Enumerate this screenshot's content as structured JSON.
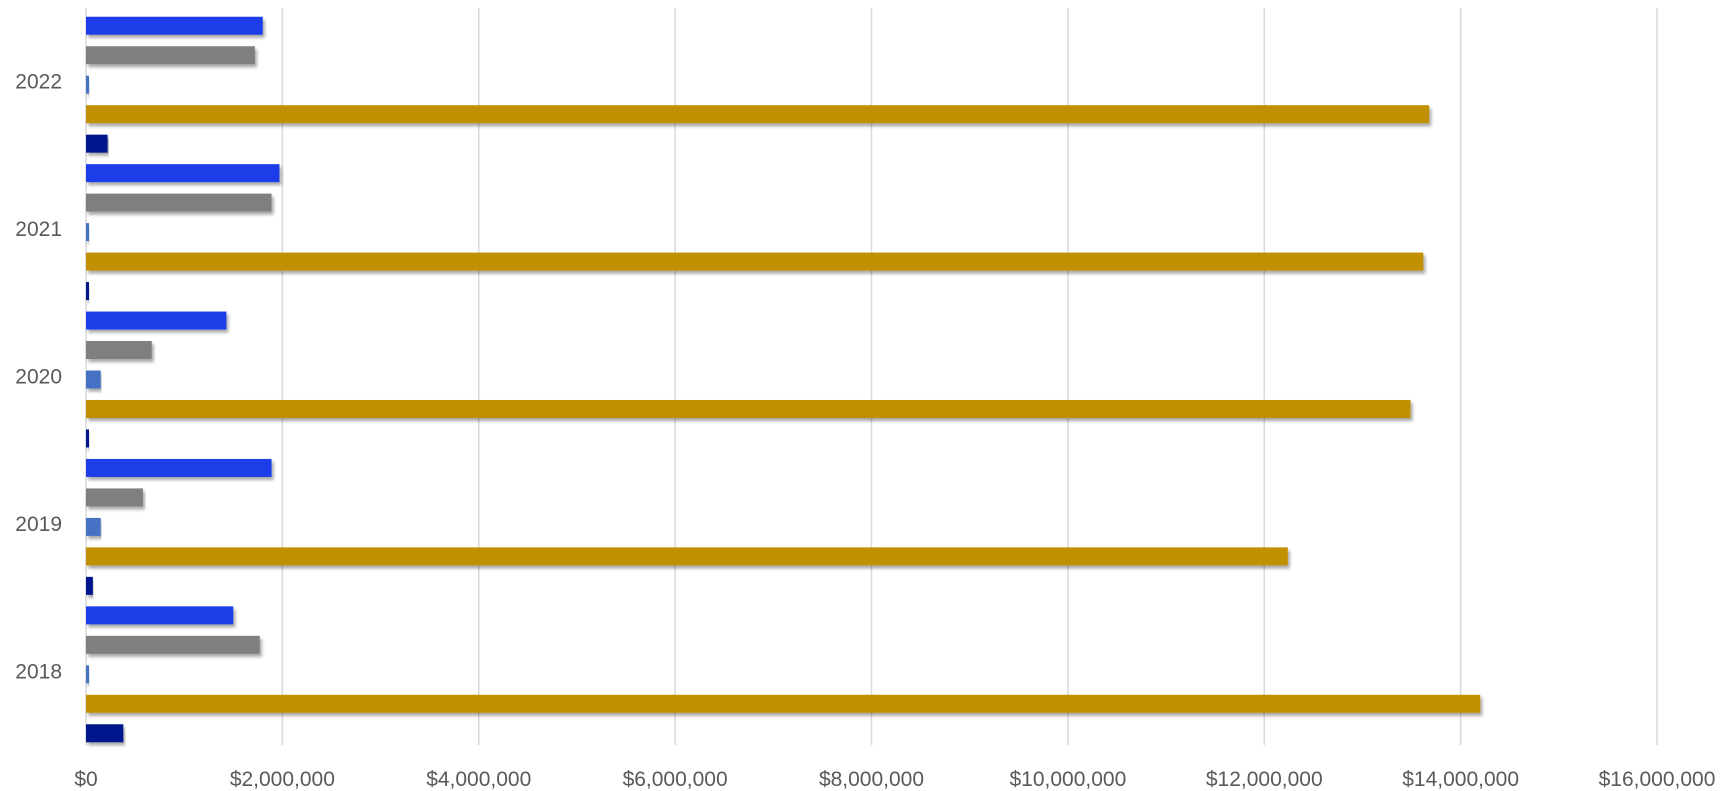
{
  "chart_data": {
    "type": "bar",
    "orientation": "horizontal",
    "title": "",
    "xlabel": "",
    "ylabel": "",
    "xlim": [
      0,
      16000000
    ],
    "x_ticks": [
      0,
      2000000,
      4000000,
      6000000,
      8000000,
      10000000,
      12000000,
      14000000,
      16000000
    ],
    "x_tick_labels": [
      "$0",
      "$2,000,000",
      "$4,000,000",
      "$6,000,000",
      "$8,000,000",
      "$10,000,000",
      "$12,000,000",
      "$14,000,000",
      "$16,000,000"
    ],
    "grid": "vertical",
    "legend": "none",
    "categories": [
      "2018",
      "2019",
      "2020",
      "2021",
      "2022"
    ],
    "series": [
      {
        "color": "#1f3ee8",
        "values": [
          1500000,
          1890000,
          1430000,
          1970000,
          1800000
        ]
      },
      {
        "color": "#7f7f7f",
        "values": [
          1770000,
          580000,
          670000,
          1890000,
          1720000
        ]
      },
      {
        "color": "#4472c4",
        "values": [
          20000,
          150000,
          150000,
          30000,
          10000
        ]
      },
      {
        "color": "#c09000",
        "values": [
          14200000,
          12240000,
          13490000,
          13620000,
          13680000
        ]
      },
      {
        "color": "#00148c",
        "values": [
          380000,
          70000,
          30000,
          30000,
          220000
        ]
      }
    ]
  }
}
